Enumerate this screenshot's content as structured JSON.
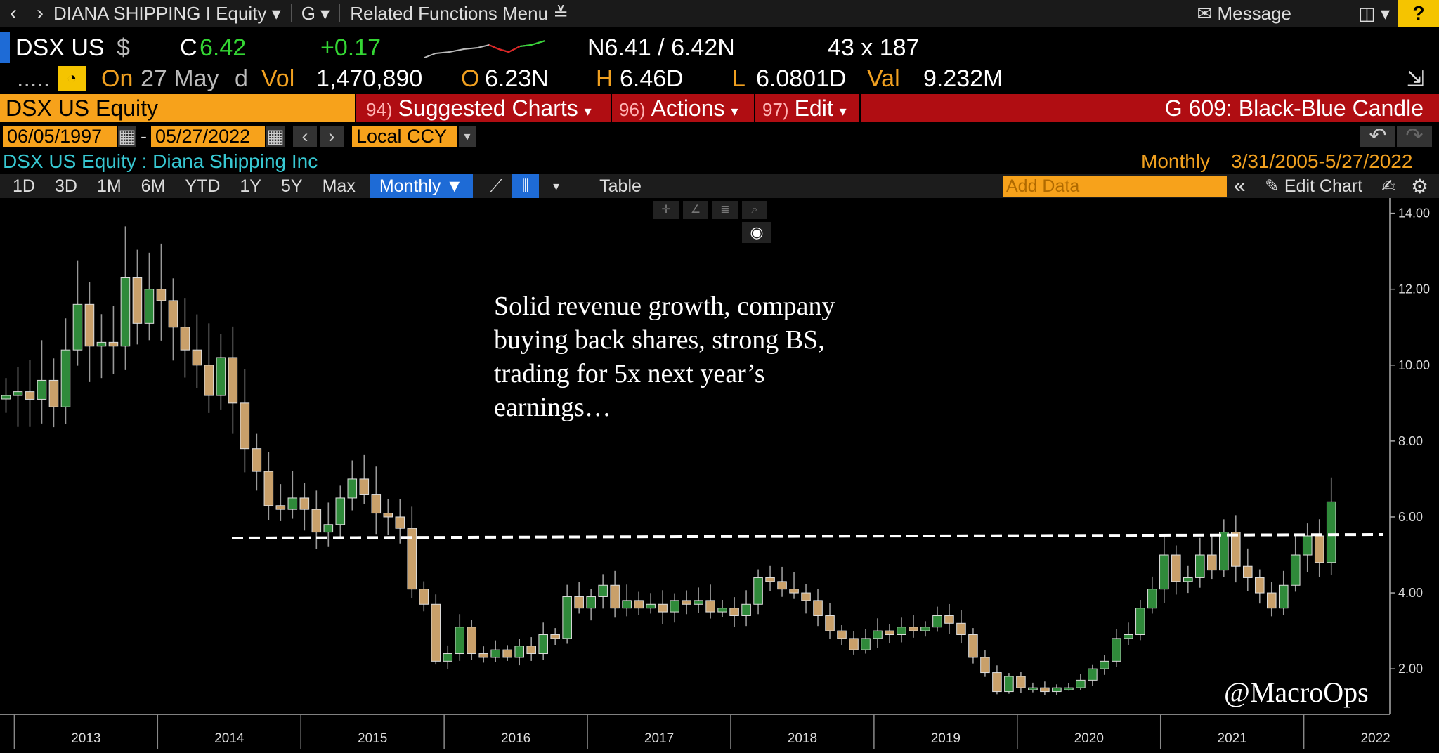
{
  "nav": {
    "security": "DIANA SHIPPING I Equity",
    "g": "G",
    "related": "Related Functions Menu",
    "message": "Message",
    "help": "?"
  },
  "quote": {
    "ticker": "DSX US",
    "currency": "$",
    "c_label": "C",
    "last": "6.42",
    "change": "+0.17",
    "bid_ask": "N6.41 / 6.42N",
    "size": "43 x 187"
  },
  "info": {
    "dots": ".....",
    "on_label": "On",
    "date": "27 May",
    "d": "d",
    "vol_label": "Vol",
    "vol": "1,470,890",
    "open_label": "O",
    "open": "6.23N",
    "high_label": "H",
    "high": "6.46D",
    "low_label": "L",
    "low": "6.0801D",
    "val_label": "Val",
    "val": "9.232M"
  },
  "bar": {
    "security": "DSX US Equity",
    "f94_num": "94)",
    "f94": "Suggested Charts",
    "f96_num": "96)",
    "f96": "Actions",
    "f97_num": "97)",
    "f97": "Edit",
    "chart_type": "G 609: Black-Blue Candle"
  },
  "dates": {
    "start": "06/05/1997",
    "dash": "-",
    "end": "05/27/2022",
    "ccy": "Local CCY"
  },
  "titleline": {
    "name": "DSX US Equity : Diana Shipping Inc",
    "period": "Monthly",
    "range": "3/31/2005-5/27/2022"
  },
  "toolbar": {
    "ranges": [
      "1D",
      "3D",
      "1M",
      "6M",
      "YTD",
      "1Y",
      "5Y",
      "Max"
    ],
    "period": "Monthly",
    "table": "Table",
    "add_data": "Add Data",
    "edit_chart": "Edit Chart"
  },
  "annotation": {
    "lines": [
      "Solid revenue growth, company",
      "buying back shares, strong BS,",
      "trading for 5x next year’s",
      "earnings…"
    ]
  },
  "watermark": "@MacroOps",
  "colors": {
    "up": "#2f8a3a",
    "down": "#c9a06a",
    "accent": "#f7a21b",
    "red": "#b00d12",
    "blue": "#1e6bd6"
  },
  "chart_data": {
    "type": "candlestick",
    "xlabel": "",
    "ylabel": "",
    "x_start": 2012.9,
    "x_end": 2022.6,
    "ylim": [
      0.8,
      14.4
    ],
    "yticks": [
      2.0,
      4.0,
      6.0,
      8.0,
      10.0,
      12.0,
      14.0
    ],
    "xticks": [
      "2013",
      "2014",
      "2015",
      "2016",
      "2017",
      "2018",
      "2019",
      "2020",
      "2021",
      "2022"
    ],
    "resistance": 5.5,
    "candles_close": [
      9.2,
      9.3,
      9.1,
      9.6,
      8.9,
      10.4,
      11.6,
      10.5,
      10.6,
      10.5,
      12.3,
      11.1,
      12.0,
      11.7,
      11.0,
      10.4,
      10.0,
      9.2,
      10.2,
      9.0,
      7.8,
      7.2,
      6.3,
      6.2,
      6.5,
      6.2,
      5.6,
      5.8,
      6.5,
      7.0,
      6.6,
      6.1,
      6.0,
      5.7,
      4.1,
      3.7,
      2.2,
      2.4,
      3.1,
      2.4,
      2.3,
      2.5,
      2.3,
      2.6,
      2.4,
      2.9,
      2.8,
      3.9,
      3.6,
      3.9,
      4.2,
      3.6,
      3.8,
      3.6,
      3.7,
      3.5,
      3.8,
      3.7,
      3.8,
      3.5,
      3.6,
      3.4,
      3.7,
      4.4,
      4.3,
      4.1,
      4.0,
      3.8,
      3.4,
      3.0,
      2.8,
      2.5,
      2.8,
      3.0,
      2.9,
      3.1,
      3.0,
      3.1,
      3.4,
      3.2,
      2.9,
      2.3,
      1.9,
      1.4,
      1.8,
      1.5,
      1.5,
      1.4,
      1.5,
      1.5,
      1.7,
      2.0,
      2.2,
      2.8,
      2.9,
      3.6,
      4.1,
      5.0,
      4.3,
      4.4,
      5.0,
      4.6,
      5.6,
      4.7,
      4.4,
      4.0,
      3.6,
      4.2,
      5.0,
      5.5,
      4.8,
      6.4
    ]
  }
}
